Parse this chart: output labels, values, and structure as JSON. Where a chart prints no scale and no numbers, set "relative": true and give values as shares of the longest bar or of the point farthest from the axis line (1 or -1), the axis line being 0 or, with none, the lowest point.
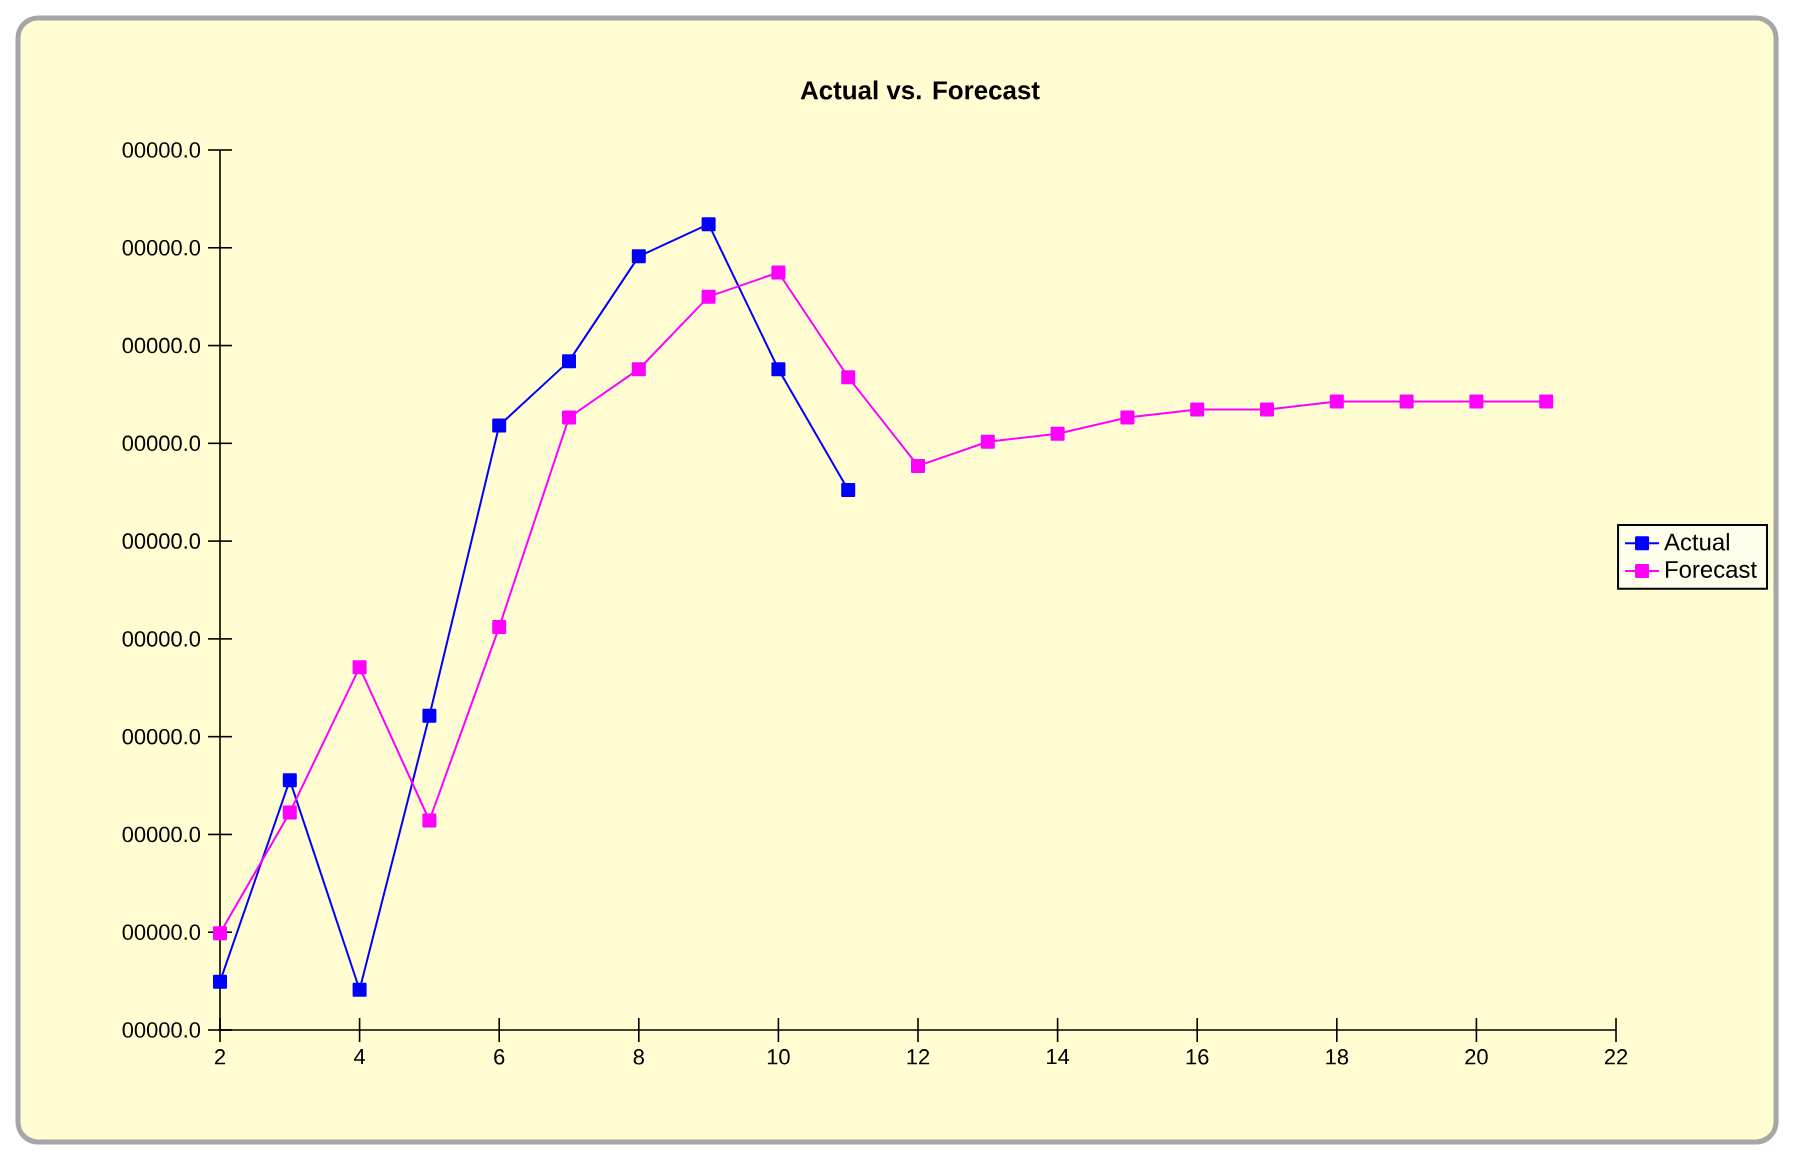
{
  "chart_data": {
    "type": "line",
    "title": "Actual vs. Forecast",
    "relative": true,
    "series": [
      {
        "name": "Actual",
        "color": "#0000ff",
        "x": [
          2,
          3,
          4,
          5,
          6,
          7,
          8,
          9,
          10,
          11
        ],
        "values": [
          0.06,
          0.31,
          0.05,
          0.39,
          0.75,
          0.83,
          0.96,
          1,
          0.82,
          0.67
        ]
      },
      {
        "name": "Forecast",
        "color": "#ff00ff",
        "x": [
          2,
          3,
          4,
          5,
          6,
          7,
          8,
          9,
          10,
          11,
          12,
          13,
          14,
          15,
          16,
          17,
          18,
          19,
          20,
          21
        ],
        "values": [
          0.12,
          0.27,
          0.45,
          0.26,
          0.5,
          0.76,
          0.82,
          0.91,
          0.94,
          0.81,
          0.7,
          0.73,
          0.74,
          0.76,
          0.77,
          0.77,
          0.78,
          0.78,
          0.78,
          0.78
        ]
      }
    ],
    "annotations": [
      "00000.0",
      "00000.0",
      "00000.0",
      "00000.0",
      "00000.0",
      "00000.0",
      "00000.0",
      "00000.0",
      "00000.0",
      "00000.0"
    ],
    "xlim": [
      2,
      22
    ],
    "xticks": [
      2,
      4,
      6,
      8,
      10,
      12,
      14,
      16,
      18,
      20,
      22
    ],
    "legend": "right",
    "marker": "square"
  }
}
